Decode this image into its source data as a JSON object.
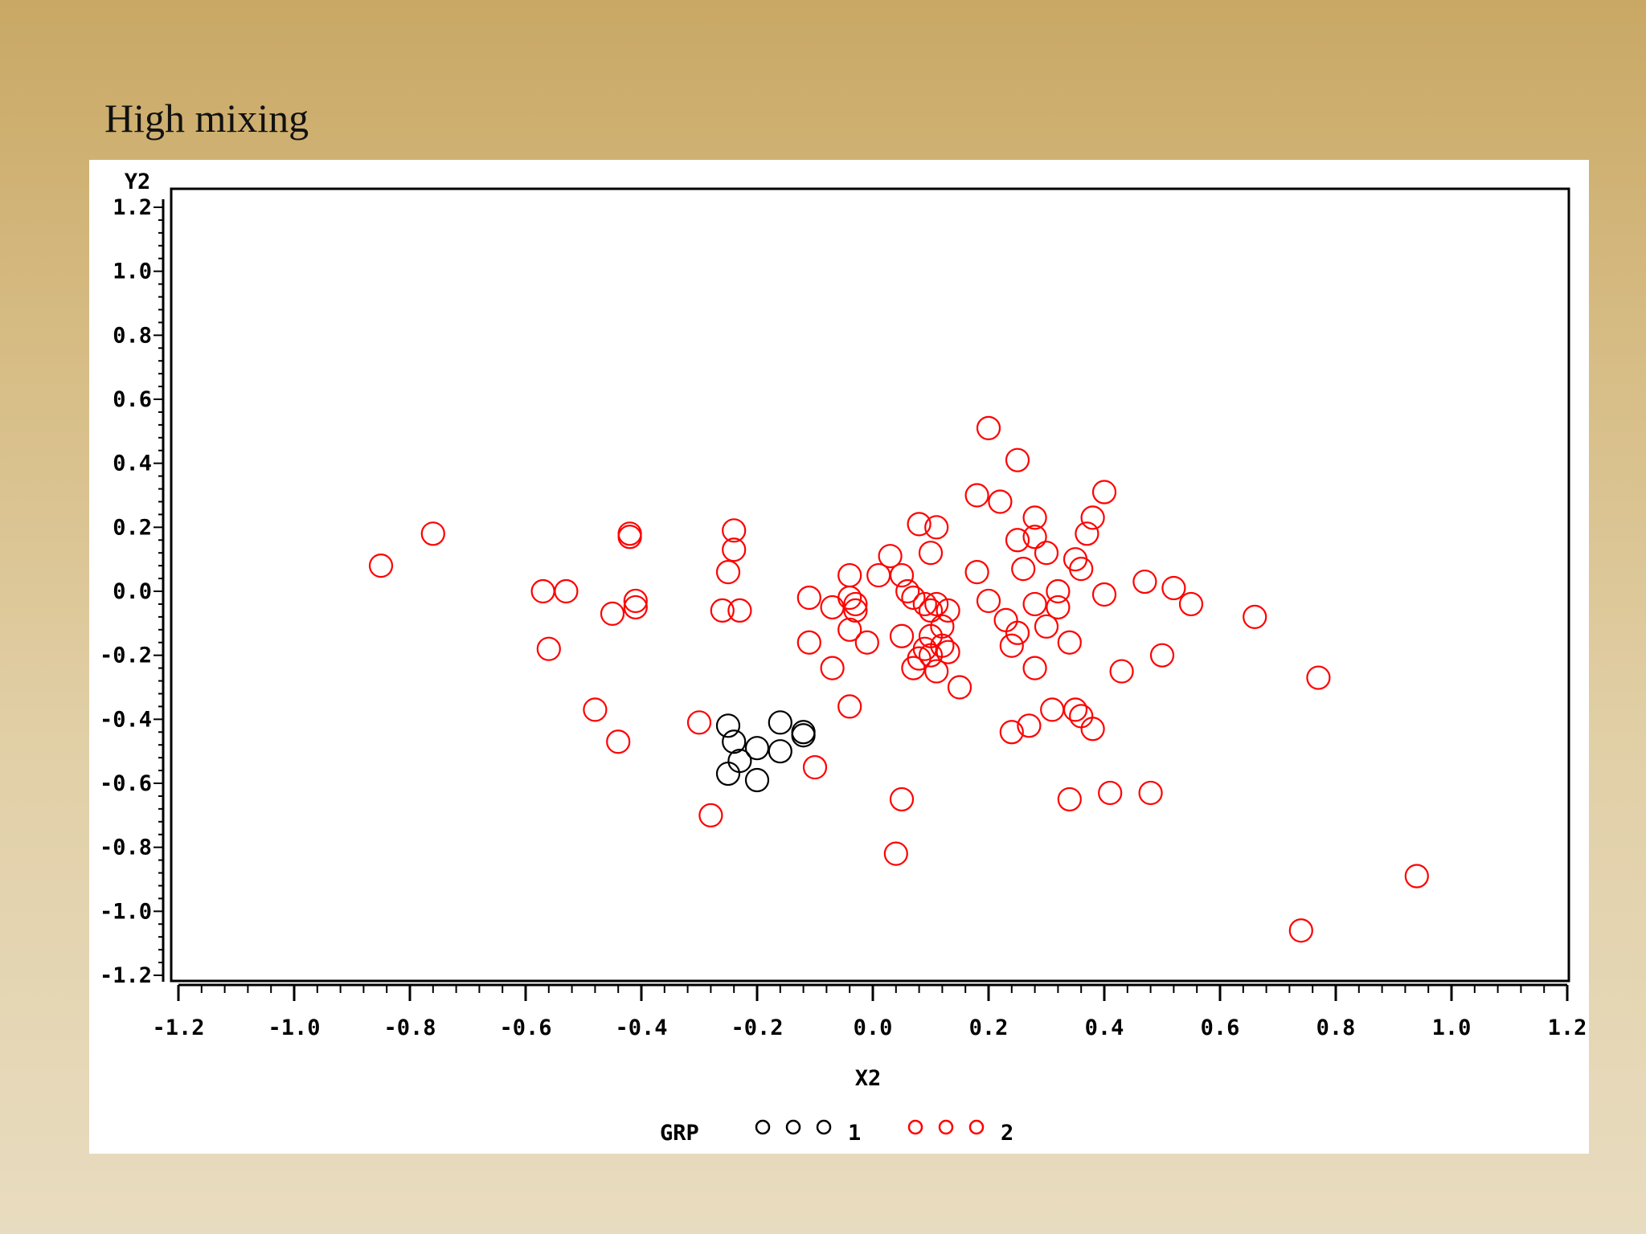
{
  "slide": {
    "title": "High mixing"
  },
  "chart_data": {
    "type": "scatter",
    "title": "",
    "xlabel": "X2",
    "ylabel": "Y2",
    "xlim": [
      -1.2,
      1.2
    ],
    "ylim": [
      -1.2,
      1.2
    ],
    "x_ticks": [
      "-1.2",
      "-1.0",
      "-0.8",
      "-0.6",
      "-0.4",
      "-0.2",
      "0.0",
      "0.2",
      "0.4",
      "0.6",
      "0.8",
      "1.0",
      "1.2"
    ],
    "y_ticks": [
      "1.2",
      "1.0",
      "0.8",
      "0.6",
      "0.4",
      "0.2",
      "0.0",
      "-0.2",
      "-0.4",
      "-0.6",
      "-0.8",
      "-1.0",
      "-1.2"
    ],
    "grid": false,
    "legend": {
      "title": "GRP",
      "position": "bottom-center",
      "entries": [
        {
          "label": "1",
          "color": "#000000"
        },
        {
          "label": "2",
          "color": "#ff0000"
        }
      ]
    },
    "series": [
      {
        "name": "1",
        "color": "#000000",
        "points": [
          [
            -0.25,
            -0.42
          ],
          [
            -0.24,
            -0.47
          ],
          [
            -0.2,
            -0.49
          ],
          [
            -0.16,
            -0.41
          ],
          [
            -0.12,
            -0.44
          ],
          [
            -0.12,
            -0.45
          ],
          [
            -0.23,
            -0.53
          ],
          [
            -0.16,
            -0.5
          ],
          [
            -0.25,
            -0.57
          ],
          [
            -0.2,
            -0.59
          ]
        ]
      },
      {
        "name": "2",
        "color": "#ff0000",
        "points": [
          [
            -0.85,
            0.08
          ],
          [
            -0.76,
            0.18
          ],
          [
            -0.57,
            0.0
          ],
          [
            -0.53,
            0.0
          ],
          [
            -0.56,
            -0.18
          ],
          [
            -0.48,
            -0.37
          ],
          [
            -0.44,
            -0.47
          ],
          [
            -0.42,
            0.18
          ],
          [
            -0.42,
            0.17
          ],
          [
            -0.41,
            -0.03
          ],
          [
            -0.41,
            -0.05
          ],
          [
            -0.45,
            -0.07
          ],
          [
            -0.3,
            -0.41
          ],
          [
            -0.28,
            -0.7
          ],
          [
            -0.24,
            0.19
          ],
          [
            -0.24,
            0.13
          ],
          [
            -0.25,
            0.06
          ],
          [
            -0.26,
            -0.06
          ],
          [
            -0.23,
            -0.06
          ],
          [
            -0.1,
            -0.55
          ],
          [
            -0.11,
            -0.16
          ],
          [
            -0.11,
            -0.02
          ],
          [
            -0.07,
            -0.24
          ],
          [
            -0.07,
            -0.05
          ],
          [
            -0.04,
            0.05
          ],
          [
            -0.04,
            -0.02
          ],
          [
            -0.03,
            -0.04
          ],
          [
            -0.04,
            -0.12
          ],
          [
            -0.03,
            -0.06
          ],
          [
            -0.01,
            -0.16
          ],
          [
            -0.04,
            -0.36
          ],
          [
            0.01,
            0.05
          ],
          [
            0.03,
            0.11
          ],
          [
            0.05,
            0.05
          ],
          [
            0.06,
            0.0
          ],
          [
            0.08,
            0.21
          ],
          [
            0.11,
            0.2
          ],
          [
            0.1,
            0.12
          ],
          [
            0.07,
            -0.02
          ],
          [
            0.09,
            -0.04
          ],
          [
            0.11,
            -0.04
          ],
          [
            0.13,
            -0.06
          ],
          [
            0.1,
            -0.06
          ],
          [
            0.12,
            -0.11
          ],
          [
            0.05,
            -0.14
          ],
          [
            0.1,
            -0.14
          ],
          [
            0.12,
            -0.17
          ],
          [
            0.09,
            -0.18
          ],
          [
            0.13,
            -0.19
          ],
          [
            0.1,
            -0.2
          ],
          [
            0.08,
            -0.21
          ],
          [
            0.07,
            -0.24
          ],
          [
            0.11,
            -0.25
          ],
          [
            0.15,
            -0.3
          ],
          [
            0.05,
            -0.65
          ],
          [
            0.04,
            -0.82
          ],
          [
            0.18,
            0.3
          ],
          [
            0.2,
            0.51
          ],
          [
            0.22,
            0.28
          ],
          [
            0.25,
            0.41
          ],
          [
            0.18,
            0.06
          ],
          [
            0.2,
            -0.03
          ],
          [
            0.23,
            -0.09
          ],
          [
            0.25,
            -0.13
          ],
          [
            0.24,
            -0.17
          ],
          [
            0.25,
            0.16
          ],
          [
            0.28,
            0.17
          ],
          [
            0.28,
            0.23
          ],
          [
            0.3,
            0.12
          ],
          [
            0.26,
            0.07
          ],
          [
            0.28,
            -0.04
          ],
          [
            0.3,
            -0.11
          ],
          [
            0.28,
            -0.24
          ],
          [
            0.32,
            0.0
          ],
          [
            0.32,
            -0.05
          ],
          [
            0.34,
            -0.16
          ],
          [
            0.35,
            0.1
          ],
          [
            0.36,
            0.07
          ],
          [
            0.37,
            0.18
          ],
          [
            0.38,
            0.23
          ],
          [
            0.4,
            0.31
          ],
          [
            0.4,
            -0.01
          ],
          [
            0.43,
            -0.25
          ],
          [
            0.47,
            0.03
          ],
          [
            0.52,
            0.01
          ],
          [
            0.55,
            -0.04
          ],
          [
            0.5,
            -0.2
          ],
          [
            0.24,
            -0.44
          ],
          [
            0.27,
            -0.42
          ],
          [
            0.31,
            -0.37
          ],
          [
            0.35,
            -0.37
          ],
          [
            0.36,
            -0.39
          ],
          [
            0.38,
            -0.43
          ],
          [
            0.34,
            -0.65
          ],
          [
            0.41,
            -0.63
          ],
          [
            0.48,
            -0.63
          ],
          [
            0.66,
            -0.08
          ],
          [
            0.77,
            -0.27
          ],
          [
            0.94,
            -0.89
          ],
          [
            0.74,
            -1.06
          ]
        ]
      }
    ]
  }
}
